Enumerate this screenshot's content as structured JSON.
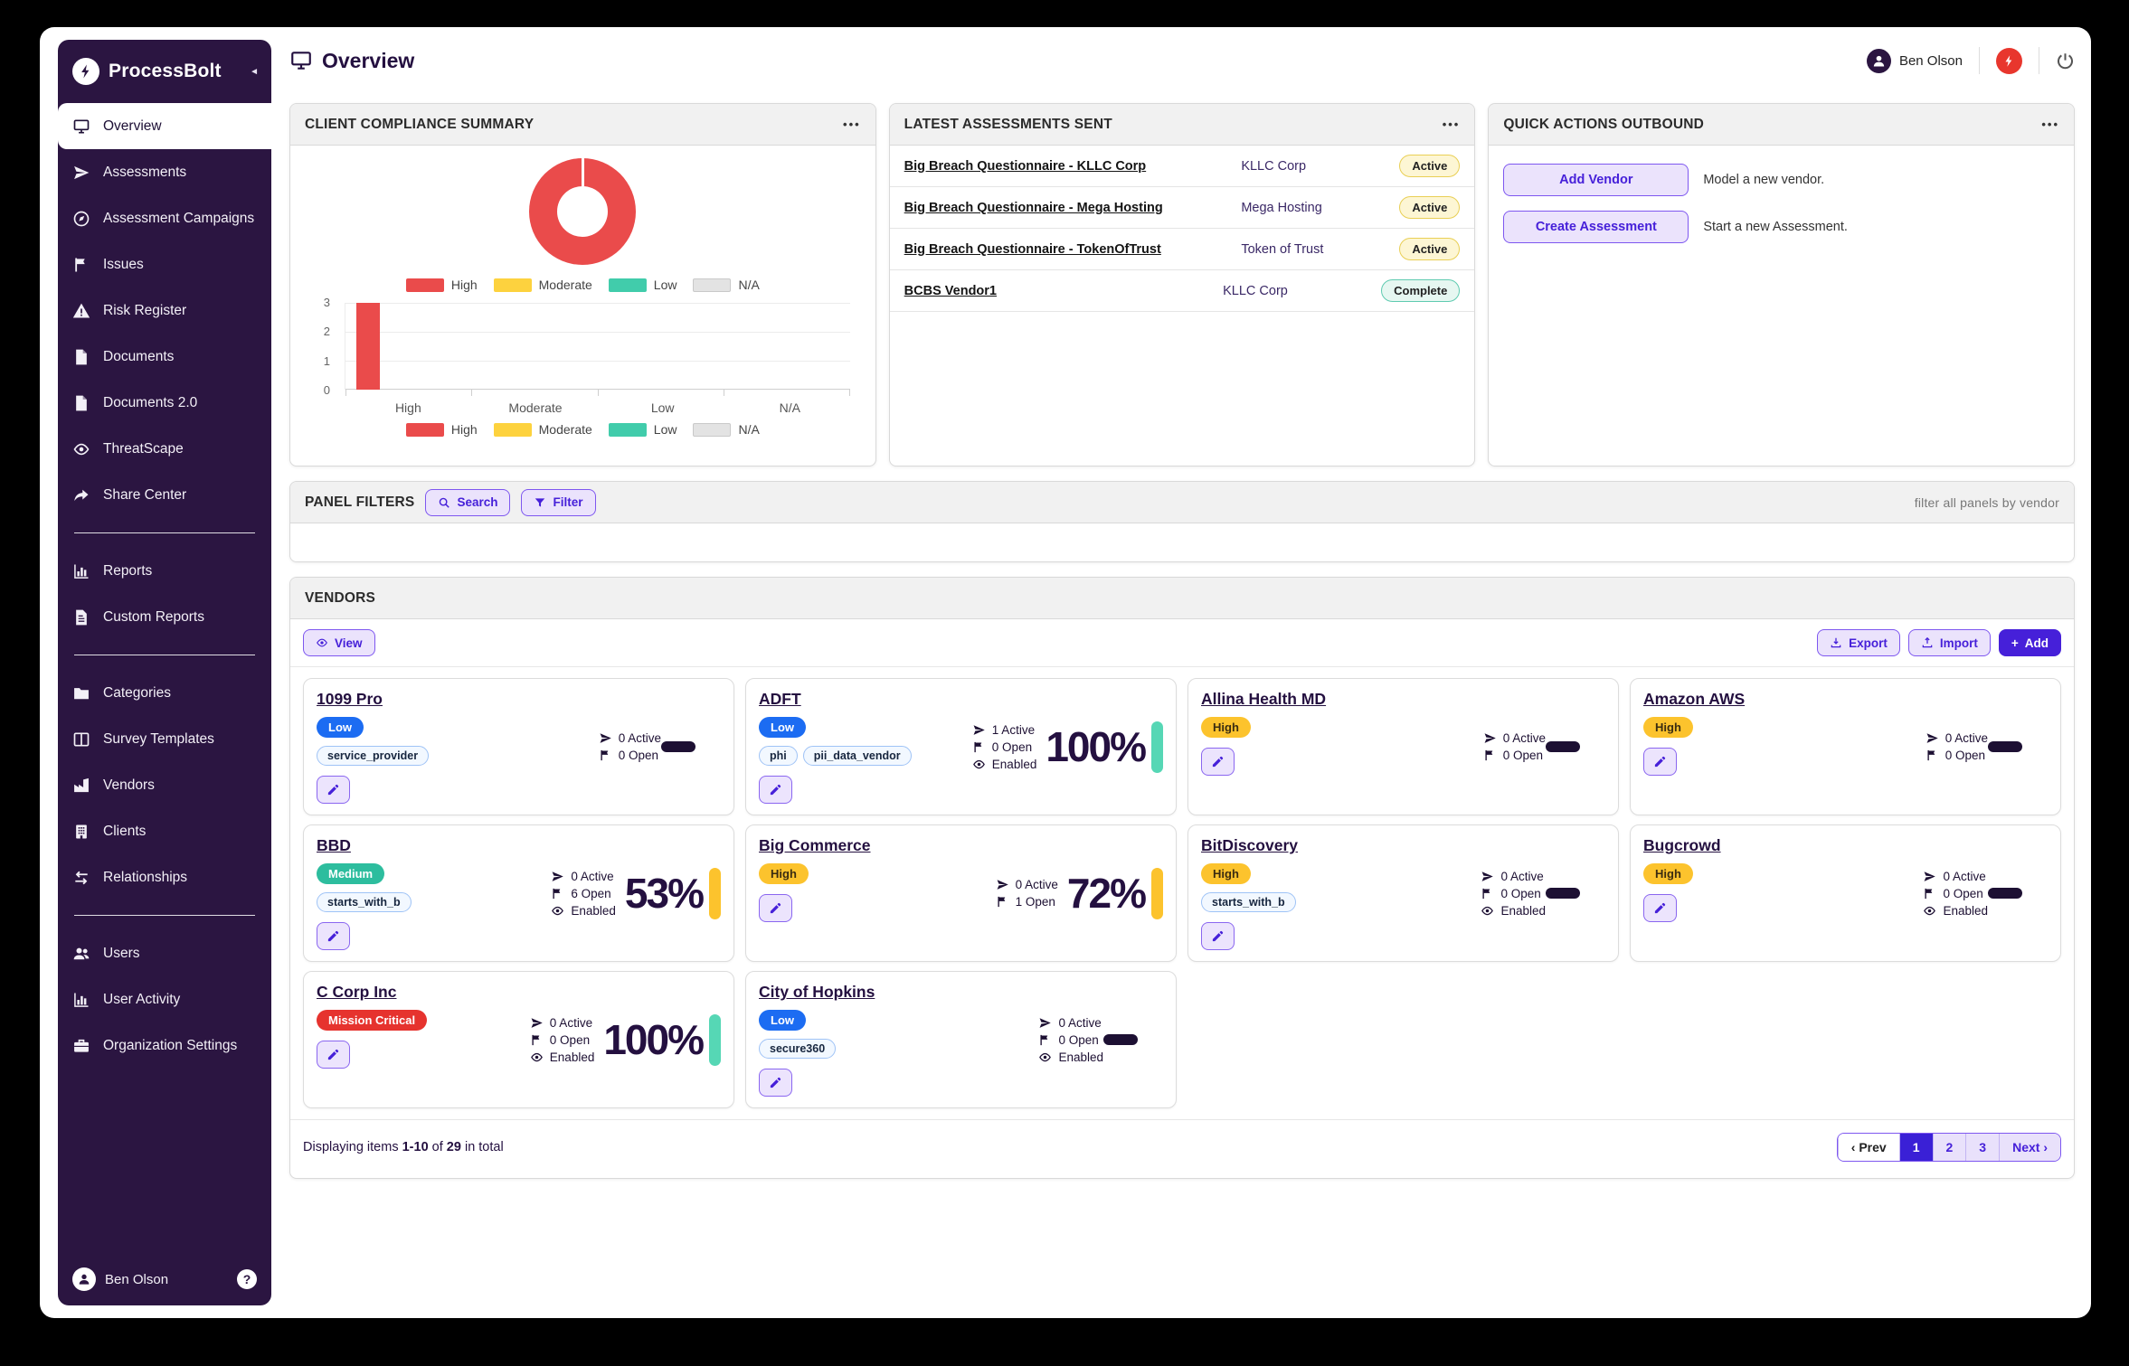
{
  "app": {
    "name": "ProcessBolt"
  },
  "icons": {
    "menu": "•••",
    "collapse": "◄",
    "help": "?",
    "plus": "+",
    "title": "monitor",
    "search": "search",
    "filter": "filter",
    "view": "eye",
    "export": "download",
    "import": "upload",
    "edit": "pencil",
    "stat_active": "send",
    "stat_open": "flag",
    "stat_enabled": "eye",
    "bolt": "bolt",
    "power": "power",
    "avatar": "person"
  },
  "colors": {
    "sidebar": "#2b1541",
    "accent": "#4620d9",
    "alert_red": "#e8362d",
    "risk_low": "#1c6cf2",
    "risk_medium": "#2dbd9e",
    "risk_high": "#fcc32d",
    "risk_critical": "#e6332e",
    "bar_teal": "#56d7b5",
    "bar_yellow": "#fcc32d",
    "dash": "#1d1033"
  },
  "header": {
    "title": "Overview",
    "user": "Ben Olson"
  },
  "sidebar": {
    "footer_user": "Ben Olson",
    "sections": {
      "s1": [
        {
          "label": "Overview",
          "icon": "monitor",
          "state": "active"
        },
        {
          "label": "Assessments",
          "icon": "send"
        },
        {
          "label": "Assessment Campaigns",
          "icon": "compass"
        },
        {
          "label": "Issues",
          "icon": "flag"
        },
        {
          "label": "Risk Register",
          "icon": "warning"
        },
        {
          "label": "Documents",
          "icon": "file"
        },
        {
          "label": "Documents 2.0",
          "icon": "file"
        },
        {
          "label": "ThreatScape",
          "icon": "eye"
        },
        {
          "label": "Share Center",
          "icon": "share"
        }
      ],
      "s2": [
        {
          "label": "Reports",
          "icon": "chart"
        },
        {
          "label": "Custom Reports",
          "icon": "filetext"
        }
      ],
      "s3": [
        {
          "label": "Categories",
          "icon": "folder"
        },
        {
          "label": "Survey Templates",
          "icon": "columns"
        },
        {
          "label": "Vendors",
          "icon": "factory"
        },
        {
          "label": "Clients",
          "icon": "building"
        },
        {
          "label": "Relationships",
          "icon": "arrows"
        }
      ],
      "s4": [
        {
          "label": "Users",
          "icon": "users"
        },
        {
          "label": "User Activity",
          "icon": "chart"
        },
        {
          "label": "Organization Settings",
          "icon": "briefcase"
        }
      ]
    }
  },
  "compliance": {
    "title": "CLIENT COMPLIANCE SUMMARY"
  },
  "chart_data": {
    "type": "doughnut+bar",
    "title": "CLIENT COMPLIANCE SUMMARY",
    "doughnut": {
      "categories": [
        "High",
        "Moderate",
        "Low",
        "N/A"
      ],
      "values": [
        3,
        0,
        0,
        0
      ],
      "colors": [
        "#ea4b4b",
        "#fdd23e",
        "#41ccab",
        "#e0e0e0"
      ]
    },
    "bar": {
      "categories": [
        "High",
        "Moderate",
        "Low",
        "N/A"
      ],
      "values": [
        3,
        0,
        0,
        0
      ],
      "ylim": [
        0,
        3
      ],
      "yticks": [
        "3",
        "2",
        "1",
        "0"
      ],
      "colors": [
        "#ea4b4b",
        "#fdd23e",
        "#41ccab",
        "#e0e0e0"
      ],
      "grid": true
    },
    "legend": [
      {
        "label": "High",
        "color": "#ea4b4b",
        "border": "transparent"
      },
      {
        "label": "Moderate",
        "color": "#fdd23e",
        "border": "transparent"
      },
      {
        "label": "Low",
        "color": "#41ccab",
        "border": "transparent"
      },
      {
        "label": "N/A",
        "color": "#e3e3e3",
        "border": "#c9c9c9"
      }
    ],
    "legend_position": "center"
  },
  "assessments": {
    "title": "LATEST ASSESSMENTS SENT",
    "rows": [
      {
        "name": "Big Breach Questionnaire - KLLC Corp",
        "client": "KLLC Corp",
        "status": "Active",
        "status_class": "st-active"
      },
      {
        "name": "Big Breach Questionnaire - Mega Hosting",
        "client": "Mega Hosting",
        "status": "Active",
        "status_class": "st-active"
      },
      {
        "name": "Big Breach Questionnaire - TokenOfTrust",
        "client": "Token of Trust",
        "status": "Active",
        "status_class": "st-active"
      },
      {
        "name": "BCBS Vendor1",
        "client": "KLLC Corp",
        "status": "Complete",
        "status_class": "st-complete"
      }
    ]
  },
  "quick_actions": {
    "title": "QUICK ACTIONS OUTBOUND",
    "actions": [
      {
        "label": "Add Vendor",
        "desc": "Model a new vendor."
      },
      {
        "label": "Create Assessment",
        "desc": "Start a new Assessment."
      }
    ]
  },
  "filters": {
    "title": "PANEL FILTERS",
    "search": "Search",
    "filter": "Filter",
    "hint": "filter all panels by vendor"
  },
  "vendors": {
    "title": "VENDORS",
    "view": "View",
    "export": "Export",
    "import": "Import",
    "add": "Add",
    "cards": [
      {
        "name": "1099 Pro",
        "risk": {
          "label": "Low",
          "cls": "r-low"
        },
        "has_tags": true,
        "tags": [
          "service_provider"
        ],
        "active": "0 Active",
        "open": "0 Open",
        "enabled": null,
        "score": null,
        "bar": null,
        "dash": true
      },
      {
        "name": "ADFT",
        "risk": {
          "label": "Low",
          "cls": "r-low"
        },
        "has_tags": true,
        "tags": [
          "phi",
          "pii_data_vendor"
        ],
        "active": "1 Active",
        "open": "0 Open",
        "enabled": "Enabled",
        "score": "100%",
        "bar": "#56d7b5",
        "dash": null
      },
      {
        "name": "Allina Health MD",
        "risk": {
          "label": "High",
          "cls": "r-high"
        },
        "has_tags": null,
        "tags": [],
        "active": "0 Active",
        "open": "0 Open",
        "enabled": null,
        "score": null,
        "bar": null,
        "dash": true
      },
      {
        "name": "Amazon AWS",
        "risk": {
          "label": "High",
          "cls": "r-high"
        },
        "has_tags": null,
        "tags": [],
        "active": "0 Active",
        "open": "0 Open",
        "enabled": null,
        "score": null,
        "bar": null,
        "dash": true
      },
      {
        "name": "BBD",
        "risk": {
          "label": "Medium",
          "cls": "r-medium"
        },
        "has_tags": true,
        "tags": [
          "starts_with_b"
        ],
        "active": "0 Active",
        "open": "6 Open",
        "enabled": "Enabled",
        "score": "53%",
        "bar": "#fcc32d",
        "dash": null
      },
      {
        "name": "Big Commerce",
        "risk": {
          "label": "High",
          "cls": "r-high"
        },
        "has_tags": null,
        "tags": [],
        "active": "0 Active",
        "open": "1 Open",
        "enabled": null,
        "score": "72%",
        "bar": "#fcc32d",
        "dash": null
      },
      {
        "name": "BitDiscovery",
        "risk": {
          "label": "High",
          "cls": "r-high"
        },
        "has_tags": true,
        "tags": [
          "starts_with_b"
        ],
        "active": "0 Active",
        "open": "0 Open",
        "enabled": "Enabled",
        "score": null,
        "bar": null,
        "dash": true
      },
      {
        "name": "Bugcrowd",
        "risk": {
          "label": "High",
          "cls": "r-high"
        },
        "has_tags": null,
        "tags": [],
        "active": "0 Active",
        "open": "0 Open",
        "enabled": "Enabled",
        "score": null,
        "bar": null,
        "dash": true
      },
      {
        "name": "C Corp Inc",
        "risk": {
          "label": "Mission Critical",
          "cls": "r-critical"
        },
        "has_tags": null,
        "tags": [],
        "active": "0 Active",
        "open": "0 Open",
        "enabled": "Enabled",
        "score": "100%",
        "bar": "#56d7b5",
        "dash": null
      },
      {
        "name": "City of Hopkins",
        "risk": {
          "label": "Low",
          "cls": "r-low"
        },
        "has_tags": true,
        "tags": [
          "secure360"
        ],
        "active": "0 Active",
        "open": "0 Open",
        "enabled": "Enabled",
        "score": null,
        "bar": null,
        "dash": true
      }
    ],
    "footer": {
      "d1": "Displaying items",
      "range": "1-10",
      "d2": "of",
      "total": "29",
      "d3": "in total"
    },
    "pagination": [
      {
        "label": "‹ Prev",
        "cls": "pg-prev"
      },
      {
        "label": "1",
        "cls": "pg-active"
      },
      {
        "label": "2",
        "cls": "pg-num"
      },
      {
        "label": "3",
        "cls": "pg-num"
      },
      {
        "label": "Next ›",
        "cls": "pg-next"
      }
    ]
  }
}
